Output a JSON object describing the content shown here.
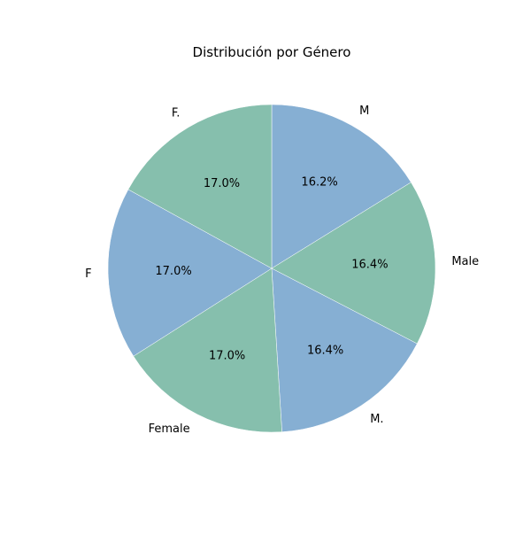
{
  "chart_data": {
    "type": "pie",
    "title": "Distribución por Género",
    "categories": [
      "M",
      "Male",
      "M.",
      "Female",
      "F",
      "F."
    ],
    "values": [
      16.2,
      16.4,
      16.4,
      17.0,
      17.0,
      17.0
    ],
    "value_labels": [
      "16.2%",
      "16.4%",
      "16.4%",
      "17.0%",
      "17.0%",
      "17.0%"
    ],
    "colors": [
      "#86afd3",
      "#86bfad",
      "#86afd3",
      "#86bfad",
      "#86afd3",
      "#86bfad"
    ],
    "start_angle_deg": 90,
    "direction": "clockwise",
    "legend": "none"
  }
}
